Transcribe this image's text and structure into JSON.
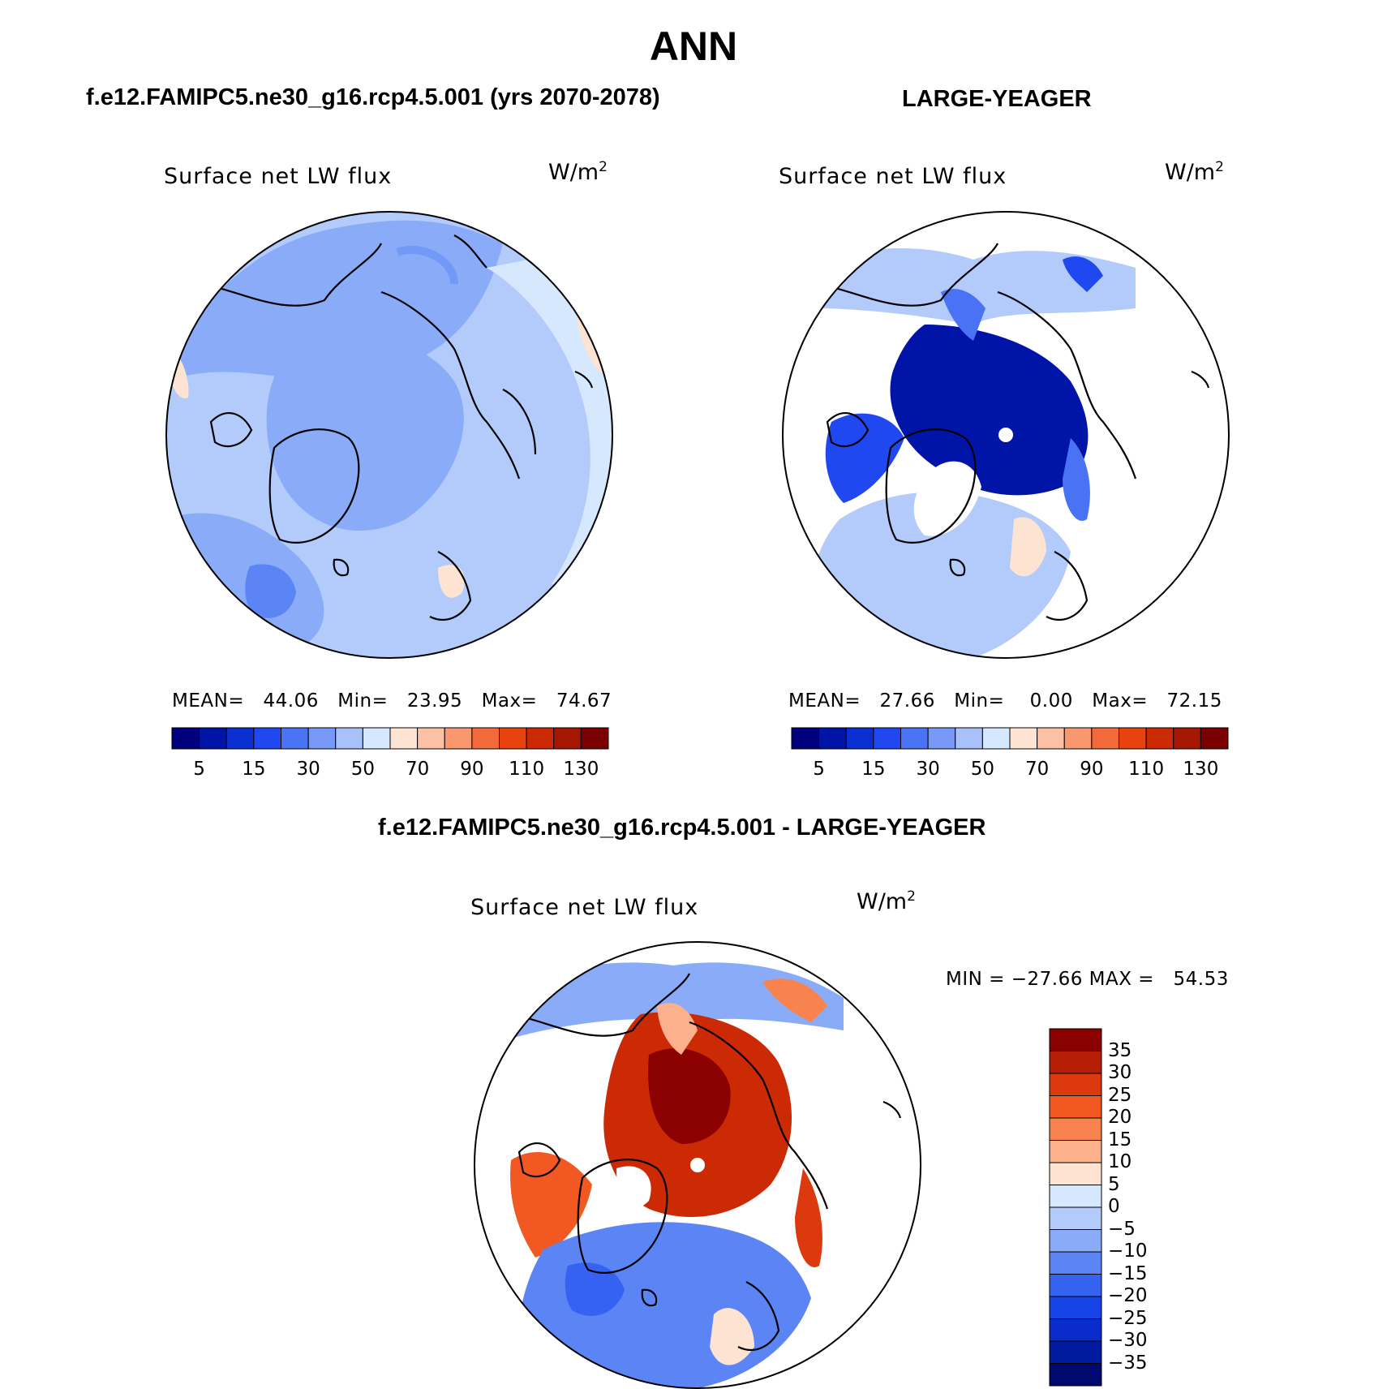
{
  "title": "ANN",
  "panels": [
    {
      "case_title": "f.e12.FAMIPC5.ne30_g16.rcp4.5.001 (yrs 2070-2078)",
      "variable": "Surface net LW flux",
      "units": "W/m",
      "units_sup": "2",
      "stats": "MEAN=   44.06   Min=   23.95   Max=   74.67"
    },
    {
      "case_title": "LARGE-YEAGER",
      "variable": "Surface net LW flux",
      "units": "W/m",
      "units_sup": "2",
      "stats": "MEAN=   27.66   Min=    0.00   Max=   72.15"
    },
    {
      "case_title": "f.e12.FAMIPC5.ne30_g16.rcp4.5.001 - LARGE-YEAGER",
      "variable": "Surface net LW flux",
      "units": "W/m",
      "units_sup": "2",
      "stats": "MIN = −27.66 MAX =   54.53"
    }
  ],
  "colorbars": {
    "abs": {
      "colors": [
        "#00007f",
        "#0015a8",
        "#0a2fd0",
        "#2048f0",
        "#4a72f5",
        "#7898f7",
        "#a8c1fa",
        "#d6e8fd",
        "#fde4d2",
        "#fcc0a4",
        "#f9986f",
        "#f36a3a",
        "#e8430f",
        "#cc2a05",
        "#a51700",
        "#7a0000"
      ],
      "tick_labels": [
        "5",
        "15",
        "30",
        "50",
        "70",
        "90",
        "110",
        "130"
      ],
      "tick_boundaries": [
        1,
        3,
        5,
        7,
        9,
        11,
        13,
        15
      ]
    },
    "diff": {
      "colors": [
        "#8b0000",
        "#b51e05",
        "#dc3a0e",
        "#f25922",
        "#f8834e",
        "#fcb18c",
        "#fde4d2",
        "#d6e8fd",
        "#b3cbfa",
        "#8aacf8",
        "#5b85f5",
        "#3562f1",
        "#1744e6",
        "#0a2ccc",
        "#001a9e",
        "#000a6e"
      ],
      "tick_labels": [
        "35",
        "30",
        "25",
        "20",
        "15",
        "10",
        "5",
        "0",
        "−5",
        "−10",
        "−15",
        "−20",
        "−25",
        "−30",
        "−35"
      ]
    }
  },
  "chart_data": [
    {
      "type": "heatmap",
      "projection": "north-polar-stereographic",
      "title": "Surface net LW flux",
      "units": "W/m2",
      "stats": {
        "mean": 44.06,
        "min": 23.95,
        "max": 74.67
      },
      "contour_levels": [
        5,
        10,
        15,
        20,
        30,
        40,
        50,
        60,
        70,
        80,
        90,
        100,
        110,
        120,
        130
      ]
    },
    {
      "type": "heatmap",
      "projection": "north-polar-stereographic",
      "title": "Surface net LW flux",
      "units": "W/m2",
      "stats": {
        "mean": 27.66,
        "min": 0.0,
        "max": 72.15
      },
      "contour_levels": [
        5,
        10,
        15,
        20,
        30,
        40,
        50,
        60,
        70,
        80,
        90,
        100,
        110,
        120,
        130
      ]
    },
    {
      "type": "heatmap",
      "projection": "north-polar-stereographic",
      "title": "Surface net LW flux",
      "units": "W/m2",
      "stats": {
        "min": -27.66,
        "max": 54.53
      },
      "contour_levels": [
        -35,
        -30,
        -25,
        -20,
        -15,
        -10,
        -5,
        0,
        5,
        10,
        15,
        20,
        25,
        30,
        35
      ]
    }
  ]
}
